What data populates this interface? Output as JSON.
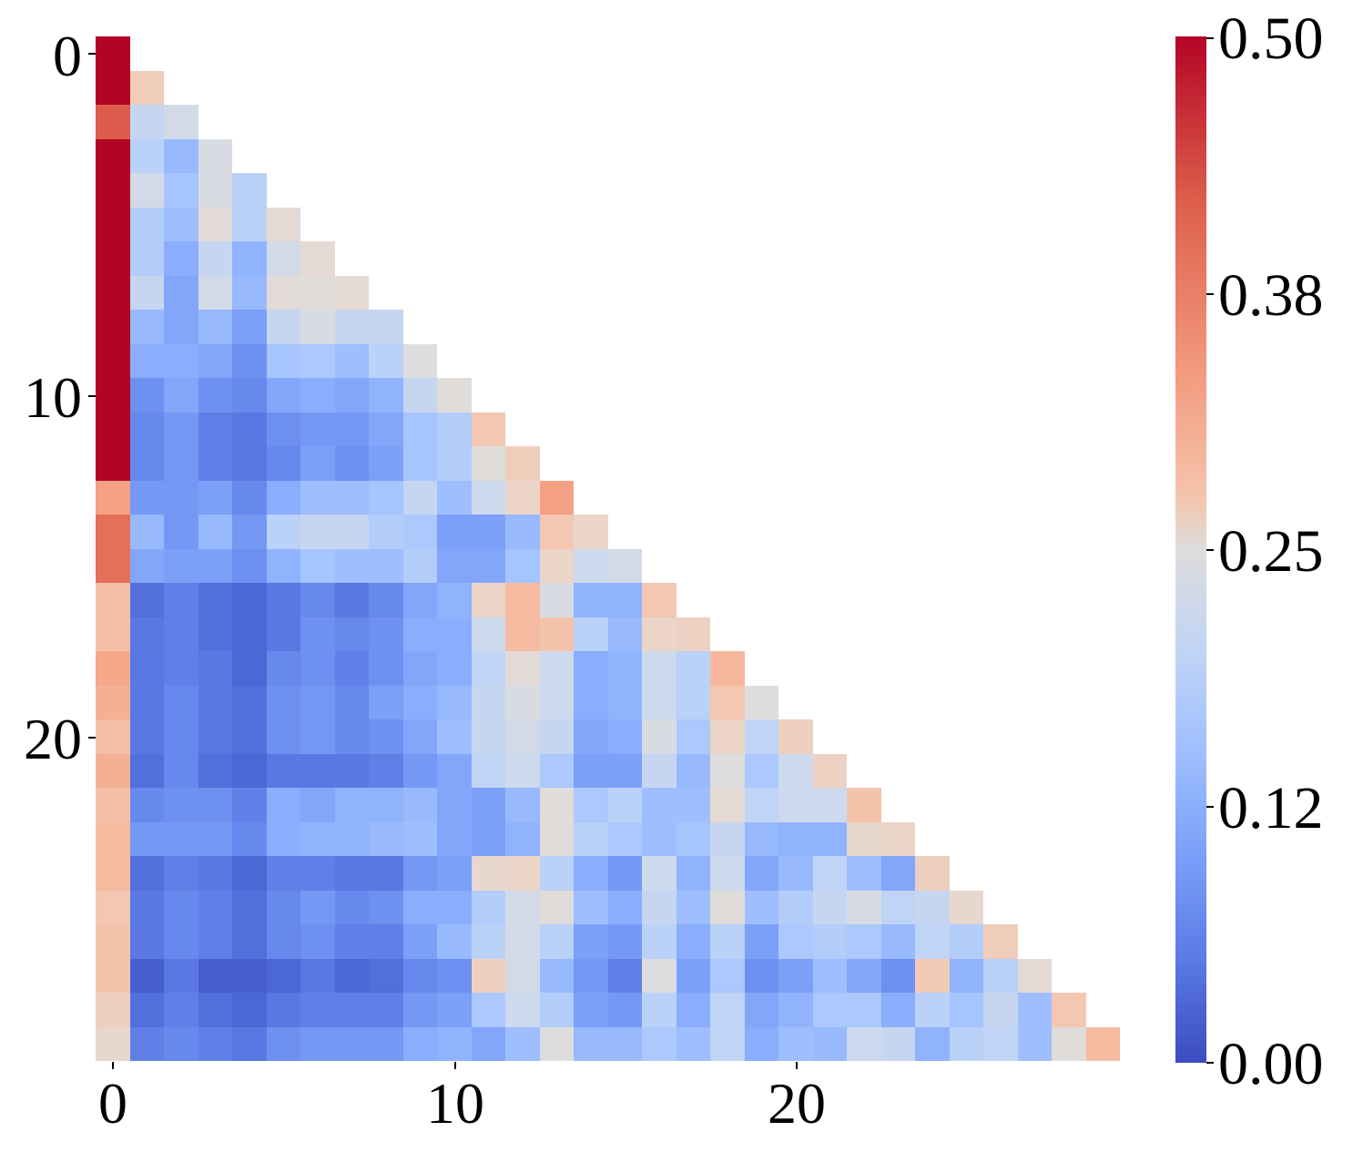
{
  "chart_data": {
    "type": "heatmap",
    "title": "",
    "xlabel": "",
    "ylabel": "",
    "mask": "upper-triangle (only lower triangle incl. diagonal shown)",
    "colormap": "coolwarm",
    "vmin": 0.0,
    "vmax": 0.5,
    "size": 30,
    "x_ticks": [
      0,
      10,
      20
    ],
    "y_ticks": [
      0,
      10,
      20
    ],
    "colorbar_ticks": [
      "0.00",
      "0.12",
      "0.25",
      "0.38",
      "0.50"
    ],
    "matrix": [
      [
        0.5
      ],
      [
        0.5,
        0.34
      ],
      [
        0.47,
        0.21,
        0.23
      ],
      [
        0.5,
        0.19,
        0.14,
        0.24
      ],
      [
        0.5,
        0.23,
        0.16,
        0.24,
        0.19
      ],
      [
        0.5,
        0.18,
        0.15,
        0.27,
        0.19,
        0.28
      ],
      [
        0.5,
        0.18,
        0.12,
        0.21,
        0.13,
        0.23,
        0.28
      ],
      [
        0.5,
        0.21,
        0.11,
        0.23,
        0.14,
        0.27,
        0.26,
        0.28
      ],
      [
        0.5,
        0.14,
        0.11,
        0.14,
        0.1,
        0.21,
        0.24,
        0.21,
        0.21
      ],
      [
        0.5,
        0.12,
        0.12,
        0.11,
        0.08,
        0.16,
        0.17,
        0.15,
        0.19,
        0.25
      ],
      [
        0.5,
        0.08,
        0.11,
        0.08,
        0.07,
        0.11,
        0.12,
        0.11,
        0.13,
        0.21,
        0.26
      ],
      [
        0.5,
        0.07,
        0.09,
        0.06,
        0.05,
        0.08,
        0.09,
        0.09,
        0.11,
        0.16,
        0.18,
        0.36
      ],
      [
        0.5,
        0.07,
        0.09,
        0.06,
        0.05,
        0.07,
        0.1,
        0.08,
        0.1,
        0.16,
        0.18,
        0.26,
        0.34
      ],
      [
        0.43,
        0.09,
        0.09,
        0.1,
        0.07,
        0.12,
        0.15,
        0.15,
        0.16,
        0.21,
        0.15,
        0.22,
        0.31,
        0.43
      ],
      [
        0.46,
        0.14,
        0.09,
        0.14,
        0.09,
        0.19,
        0.21,
        0.21,
        0.18,
        0.17,
        0.1,
        0.1,
        0.14,
        0.36,
        0.31
      ],
      [
        0.46,
        0.11,
        0.1,
        0.1,
        0.08,
        0.13,
        0.16,
        0.15,
        0.15,
        0.18,
        0.11,
        0.11,
        0.16,
        0.31,
        0.22,
        0.23
      ],
      [
        0.38,
        0.04,
        0.06,
        0.04,
        0.03,
        0.05,
        0.07,
        0.05,
        0.07,
        0.11,
        0.13,
        0.31,
        0.39,
        0.24,
        0.13,
        0.13,
        0.36
      ],
      [
        0.38,
        0.05,
        0.06,
        0.04,
        0.03,
        0.05,
        0.08,
        0.07,
        0.08,
        0.12,
        0.12,
        0.22,
        0.39,
        0.37,
        0.19,
        0.14,
        0.31,
        0.32
      ],
      [
        0.42,
        0.05,
        0.06,
        0.05,
        0.03,
        0.07,
        0.08,
        0.06,
        0.08,
        0.11,
        0.12,
        0.2,
        0.27,
        0.22,
        0.12,
        0.13,
        0.22,
        0.19,
        0.4
      ],
      [
        0.41,
        0.05,
        0.07,
        0.05,
        0.04,
        0.08,
        0.09,
        0.07,
        0.1,
        0.12,
        0.14,
        0.21,
        0.24,
        0.22,
        0.12,
        0.13,
        0.22,
        0.19,
        0.36,
        0.25
      ],
      [
        0.38,
        0.05,
        0.07,
        0.05,
        0.04,
        0.08,
        0.09,
        0.07,
        0.08,
        0.11,
        0.15,
        0.21,
        0.23,
        0.21,
        0.11,
        0.12,
        0.24,
        0.17,
        0.31,
        0.2,
        0.33
      ],
      [
        0.41,
        0.04,
        0.07,
        0.04,
        0.03,
        0.05,
        0.05,
        0.05,
        0.06,
        0.09,
        0.11,
        0.2,
        0.22,
        0.17,
        0.1,
        0.1,
        0.21,
        0.14,
        0.25,
        0.17,
        0.22,
        0.32
      ],
      [
        0.38,
        0.07,
        0.08,
        0.08,
        0.06,
        0.12,
        0.11,
        0.13,
        0.13,
        0.14,
        0.11,
        0.1,
        0.14,
        0.26,
        0.17,
        0.19,
        0.15,
        0.15,
        0.28,
        0.2,
        0.22,
        0.22,
        0.37
      ],
      [
        0.39,
        0.09,
        0.09,
        0.09,
        0.07,
        0.12,
        0.13,
        0.13,
        0.14,
        0.15,
        0.11,
        0.1,
        0.13,
        0.26,
        0.19,
        0.17,
        0.15,
        0.16,
        0.21,
        0.14,
        0.13,
        0.13,
        0.29,
        0.31
      ],
      [
        0.39,
        0.04,
        0.06,
        0.05,
        0.03,
        0.06,
        0.06,
        0.05,
        0.05,
        0.09,
        0.1,
        0.29,
        0.31,
        0.19,
        0.12,
        0.09,
        0.22,
        0.13,
        0.22,
        0.11,
        0.14,
        0.2,
        0.15,
        0.11,
        0.33
      ],
      [
        0.36,
        0.05,
        0.07,
        0.06,
        0.04,
        0.07,
        0.09,
        0.07,
        0.08,
        0.12,
        0.12,
        0.18,
        0.23,
        0.26,
        0.15,
        0.12,
        0.21,
        0.15,
        0.26,
        0.15,
        0.18,
        0.21,
        0.24,
        0.2,
        0.21,
        0.29
      ],
      [
        0.37,
        0.05,
        0.07,
        0.06,
        0.04,
        0.07,
        0.08,
        0.06,
        0.06,
        0.1,
        0.14,
        0.19,
        0.23,
        0.19,
        0.1,
        0.09,
        0.19,
        0.12,
        0.19,
        0.1,
        0.17,
        0.18,
        0.17,
        0.14,
        0.2,
        0.18,
        0.34
      ],
      [
        0.37,
        0.02,
        0.05,
        0.02,
        0.02,
        0.03,
        0.05,
        0.03,
        0.04,
        0.07,
        0.08,
        0.33,
        0.23,
        0.14,
        0.09,
        0.06,
        0.25,
        0.1,
        0.17,
        0.08,
        0.1,
        0.15,
        0.11,
        0.08,
        0.35,
        0.13,
        0.19,
        0.28
      ],
      [
        0.33,
        0.04,
        0.06,
        0.04,
        0.03,
        0.05,
        0.06,
        0.06,
        0.06,
        0.09,
        0.1,
        0.17,
        0.22,
        0.18,
        0.1,
        0.09,
        0.19,
        0.12,
        0.2,
        0.11,
        0.13,
        0.17,
        0.17,
        0.12,
        0.19,
        0.16,
        0.21,
        0.15,
        0.36
      ],
      [
        0.29,
        0.06,
        0.07,
        0.06,
        0.05,
        0.08,
        0.09,
        0.09,
        0.09,
        0.12,
        0.13,
        0.11,
        0.15,
        0.25,
        0.14,
        0.14,
        0.17,
        0.15,
        0.2,
        0.12,
        0.15,
        0.14,
        0.22,
        0.21,
        0.13,
        0.19,
        0.2,
        0.15,
        0.26,
        0.39
      ]
    ]
  }
}
